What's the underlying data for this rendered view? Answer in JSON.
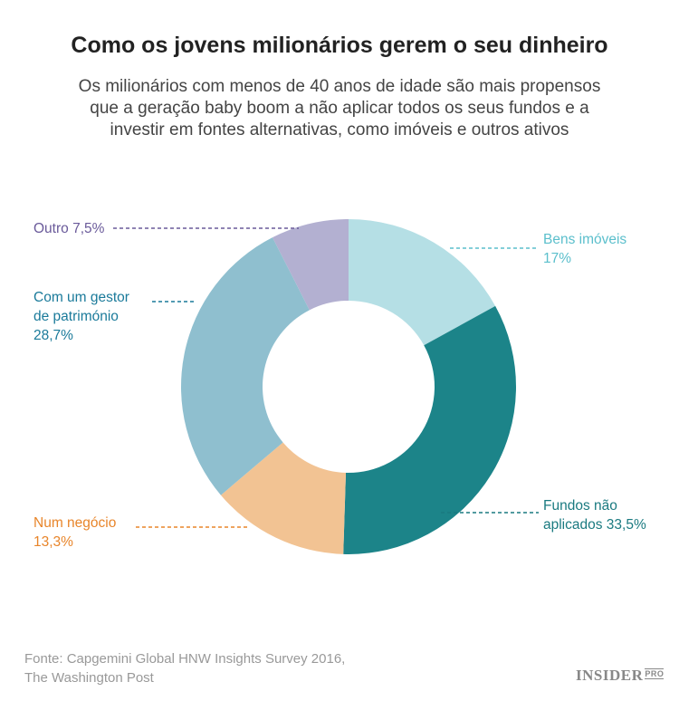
{
  "chart_data": {
    "type": "pie",
    "donut": true,
    "title": "Como os jovens milionários gerem o seu dinheiro",
    "subtitle": "Os milionários com menos de 40 anos de idade são mais propensos que a geração baby boom a não aplicar todos os seus fundos e a investir em fontes alternativas, como imóveis e outros ativos",
    "slices": [
      {
        "label": "Bens imóveis",
        "value_text": "17%",
        "value": 17,
        "color": "#b5dfe5",
        "label_color": "#5bbfcc"
      },
      {
        "label": "Fundos não aplicados",
        "value_text": "33,5%",
        "value": 33.5,
        "color": "#1c8489",
        "label_color": "#1a7a80"
      },
      {
        "label": "Num negócio",
        "value_text": "13,3%",
        "value": 13.3,
        "color": "#f2c393",
        "label_color": "#e8852a"
      },
      {
        "label": "Com um gestor de património",
        "value_text": "28,7%",
        "value": 28.7,
        "color": "#8fbfcf",
        "label_color": "#1a7a9a"
      },
      {
        "label": "Outro",
        "value_text": "7,5%",
        "value": 7.5,
        "color": "#b3b0d1",
        "label_color": "#6a5a9a"
      }
    ]
  },
  "labels": {
    "bens": [
      "Bens imóveis",
      "17%"
    ],
    "fundos": [
      "Fundos não",
      "aplicados 33,5%"
    ],
    "negocio": [
      "Num negócio",
      "13,3%"
    ],
    "gestor": [
      "Com um gestor",
      "de património",
      "28,7%"
    ],
    "outro": "Outro 7,5%"
  },
  "source": [
    "Fonte: Capgemini Global HNW Insights Survey 2016,",
    "The Washington Post"
  ],
  "logo": {
    "main": "INSIDER",
    "sub": "PRO"
  }
}
